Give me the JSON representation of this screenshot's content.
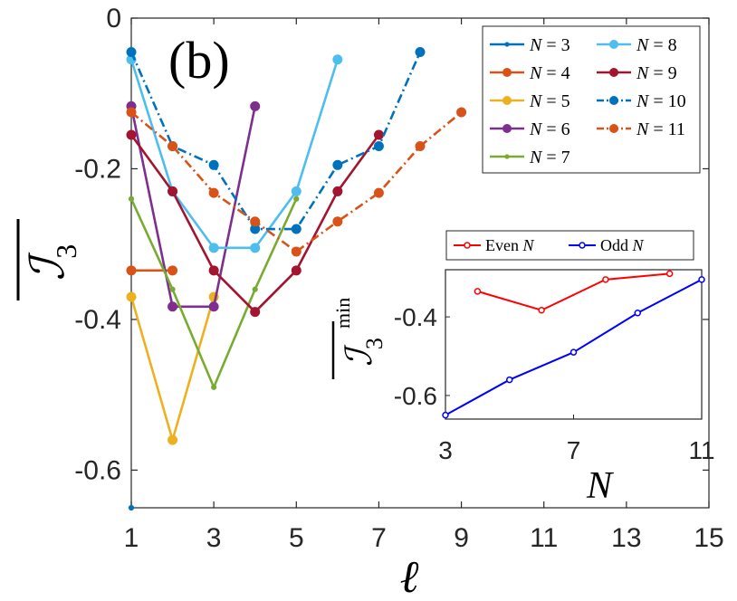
{
  "chart_data": [
    {
      "type": "line",
      "panel_label": "(b)",
      "xlabel": "ℓ",
      "ylabel": "I3",
      "xlim": [
        1,
        15
      ],
      "ylim": [
        -0.65,
        0
      ],
      "xticks": [
        1,
        3,
        5,
        7,
        9,
        11,
        13,
        15
      ],
      "xtick_labels": [
        "1",
        "3",
        "5",
        "7",
        "9",
        "11",
        "13",
        "15"
      ],
      "yticks": [
        0,
        -0.2,
        -0.4,
        -0.6
      ],
      "ytick_labels": [
        "0",
        "-0.2",
        "-0.4",
        "-0.6"
      ],
      "legend_position": "top-right",
      "series": [
        {
          "name": "N = 3",
          "label_italic": "N",
          "label_rest": " = 3",
          "color": "#0072BD",
          "style": "solid",
          "marker": "small",
          "x": [
            1
          ],
          "y": [
            -0.65
          ]
        },
        {
          "name": "N = 4",
          "label_italic": "N",
          "label_rest": " = 4",
          "color": "#D95319",
          "style": "solid",
          "marker": "large",
          "x": [
            1,
            2
          ],
          "y": [
            -0.335,
            -0.335
          ]
        },
        {
          "name": "N = 5",
          "label_italic": "N",
          "label_rest": " = 5",
          "color": "#EDB120",
          "style": "solid",
          "marker": "large",
          "x": [
            1,
            2,
            3
          ],
          "y": [
            -0.37,
            -0.56,
            -0.37
          ]
        },
        {
          "name": "N = 6",
          "label_italic": "N",
          "label_rest": " = 6",
          "color": "#7E2F8E",
          "style": "solid",
          "marker": "large",
          "x": [
            1,
            2,
            3,
            4
          ],
          "y": [
            -0.117,
            -0.383,
            -0.383,
            -0.117
          ]
        },
        {
          "name": "N = 7",
          "label_italic": "N",
          "label_rest": " = 7",
          "color": "#77AC30",
          "style": "solid",
          "marker": "small",
          "x": [
            1,
            2,
            3,
            4,
            5
          ],
          "y": [
            -0.24,
            -0.36,
            -0.49,
            -0.36,
            -0.24
          ]
        },
        {
          "name": "N = 8",
          "label_italic": "N",
          "label_rest": " = 8",
          "color": "#4DBEEE",
          "style": "solid",
          "marker": "large",
          "x": [
            1,
            2,
            3,
            4,
            5,
            6
          ],
          "y": [
            -0.055,
            -0.23,
            -0.305,
            -0.305,
            -0.23,
            -0.055
          ]
        },
        {
          "name": "N = 9",
          "label_italic": "N",
          "label_rest": " = 9",
          "color": "#A2142F",
          "style": "solid",
          "marker": "large",
          "x": [
            1,
            2,
            3,
            4,
            5,
            6,
            7
          ],
          "y": [
            -0.155,
            -0.23,
            -0.335,
            -0.39,
            -0.335,
            -0.23,
            -0.155
          ]
        },
        {
          "name": "N = 10",
          "label_italic": "N",
          "label_rest": " = 10",
          "color": "#0072BD",
          "style": "dashdot",
          "marker": "large",
          "x": [
            1,
            2,
            3,
            4,
            5,
            6,
            7,
            8
          ],
          "y": [
            -0.045,
            -0.17,
            -0.195,
            -0.28,
            -0.28,
            -0.195,
            -0.17,
            -0.045
          ]
        },
        {
          "name": "N = 11",
          "label_italic": "N",
          "label_rest": " = 11",
          "color": "#D95319",
          "style": "dashdot",
          "marker": "large",
          "x": [
            1,
            2,
            3,
            4,
            5,
            6,
            7,
            8,
            9
          ],
          "y": [
            -0.125,
            -0.17,
            -0.232,
            -0.27,
            -0.31,
            -0.27,
            -0.232,
            -0.17,
            -0.125
          ]
        }
      ]
    },
    {
      "type": "line",
      "panel_label": "inset",
      "xlabel": "N",
      "ylabel": "I3 min",
      "ylabel_superscript": "min",
      "xlim": [
        3,
        11
      ],
      "ylim": [
        -0.66,
        -0.28
      ],
      "xticks": [
        3,
        7,
        11
      ],
      "xtick_labels": [
        "3",
        "7",
        "11"
      ],
      "yticks": [
        -0.4,
        -0.6
      ],
      "ytick_labels": [
        "-0.4",
        "-0.6"
      ],
      "legend_position": "top",
      "series": [
        {
          "name": "Even N",
          "label_text": "Even ",
          "label_italic": "N",
          "color": "#FF0000",
          "x": [
            4,
            6,
            8,
            10
          ],
          "y": [
            -0.335,
            -0.383,
            -0.305,
            -0.29
          ]
        },
        {
          "name": "Odd N",
          "label_text": "Odd ",
          "label_italic": "N",
          "color": "#0000FF",
          "x": [
            3,
            5,
            7,
            9,
            11
          ],
          "y": [
            -0.65,
            -0.56,
            -0.49,
            -0.39,
            -0.305
          ]
        }
      ]
    }
  ]
}
